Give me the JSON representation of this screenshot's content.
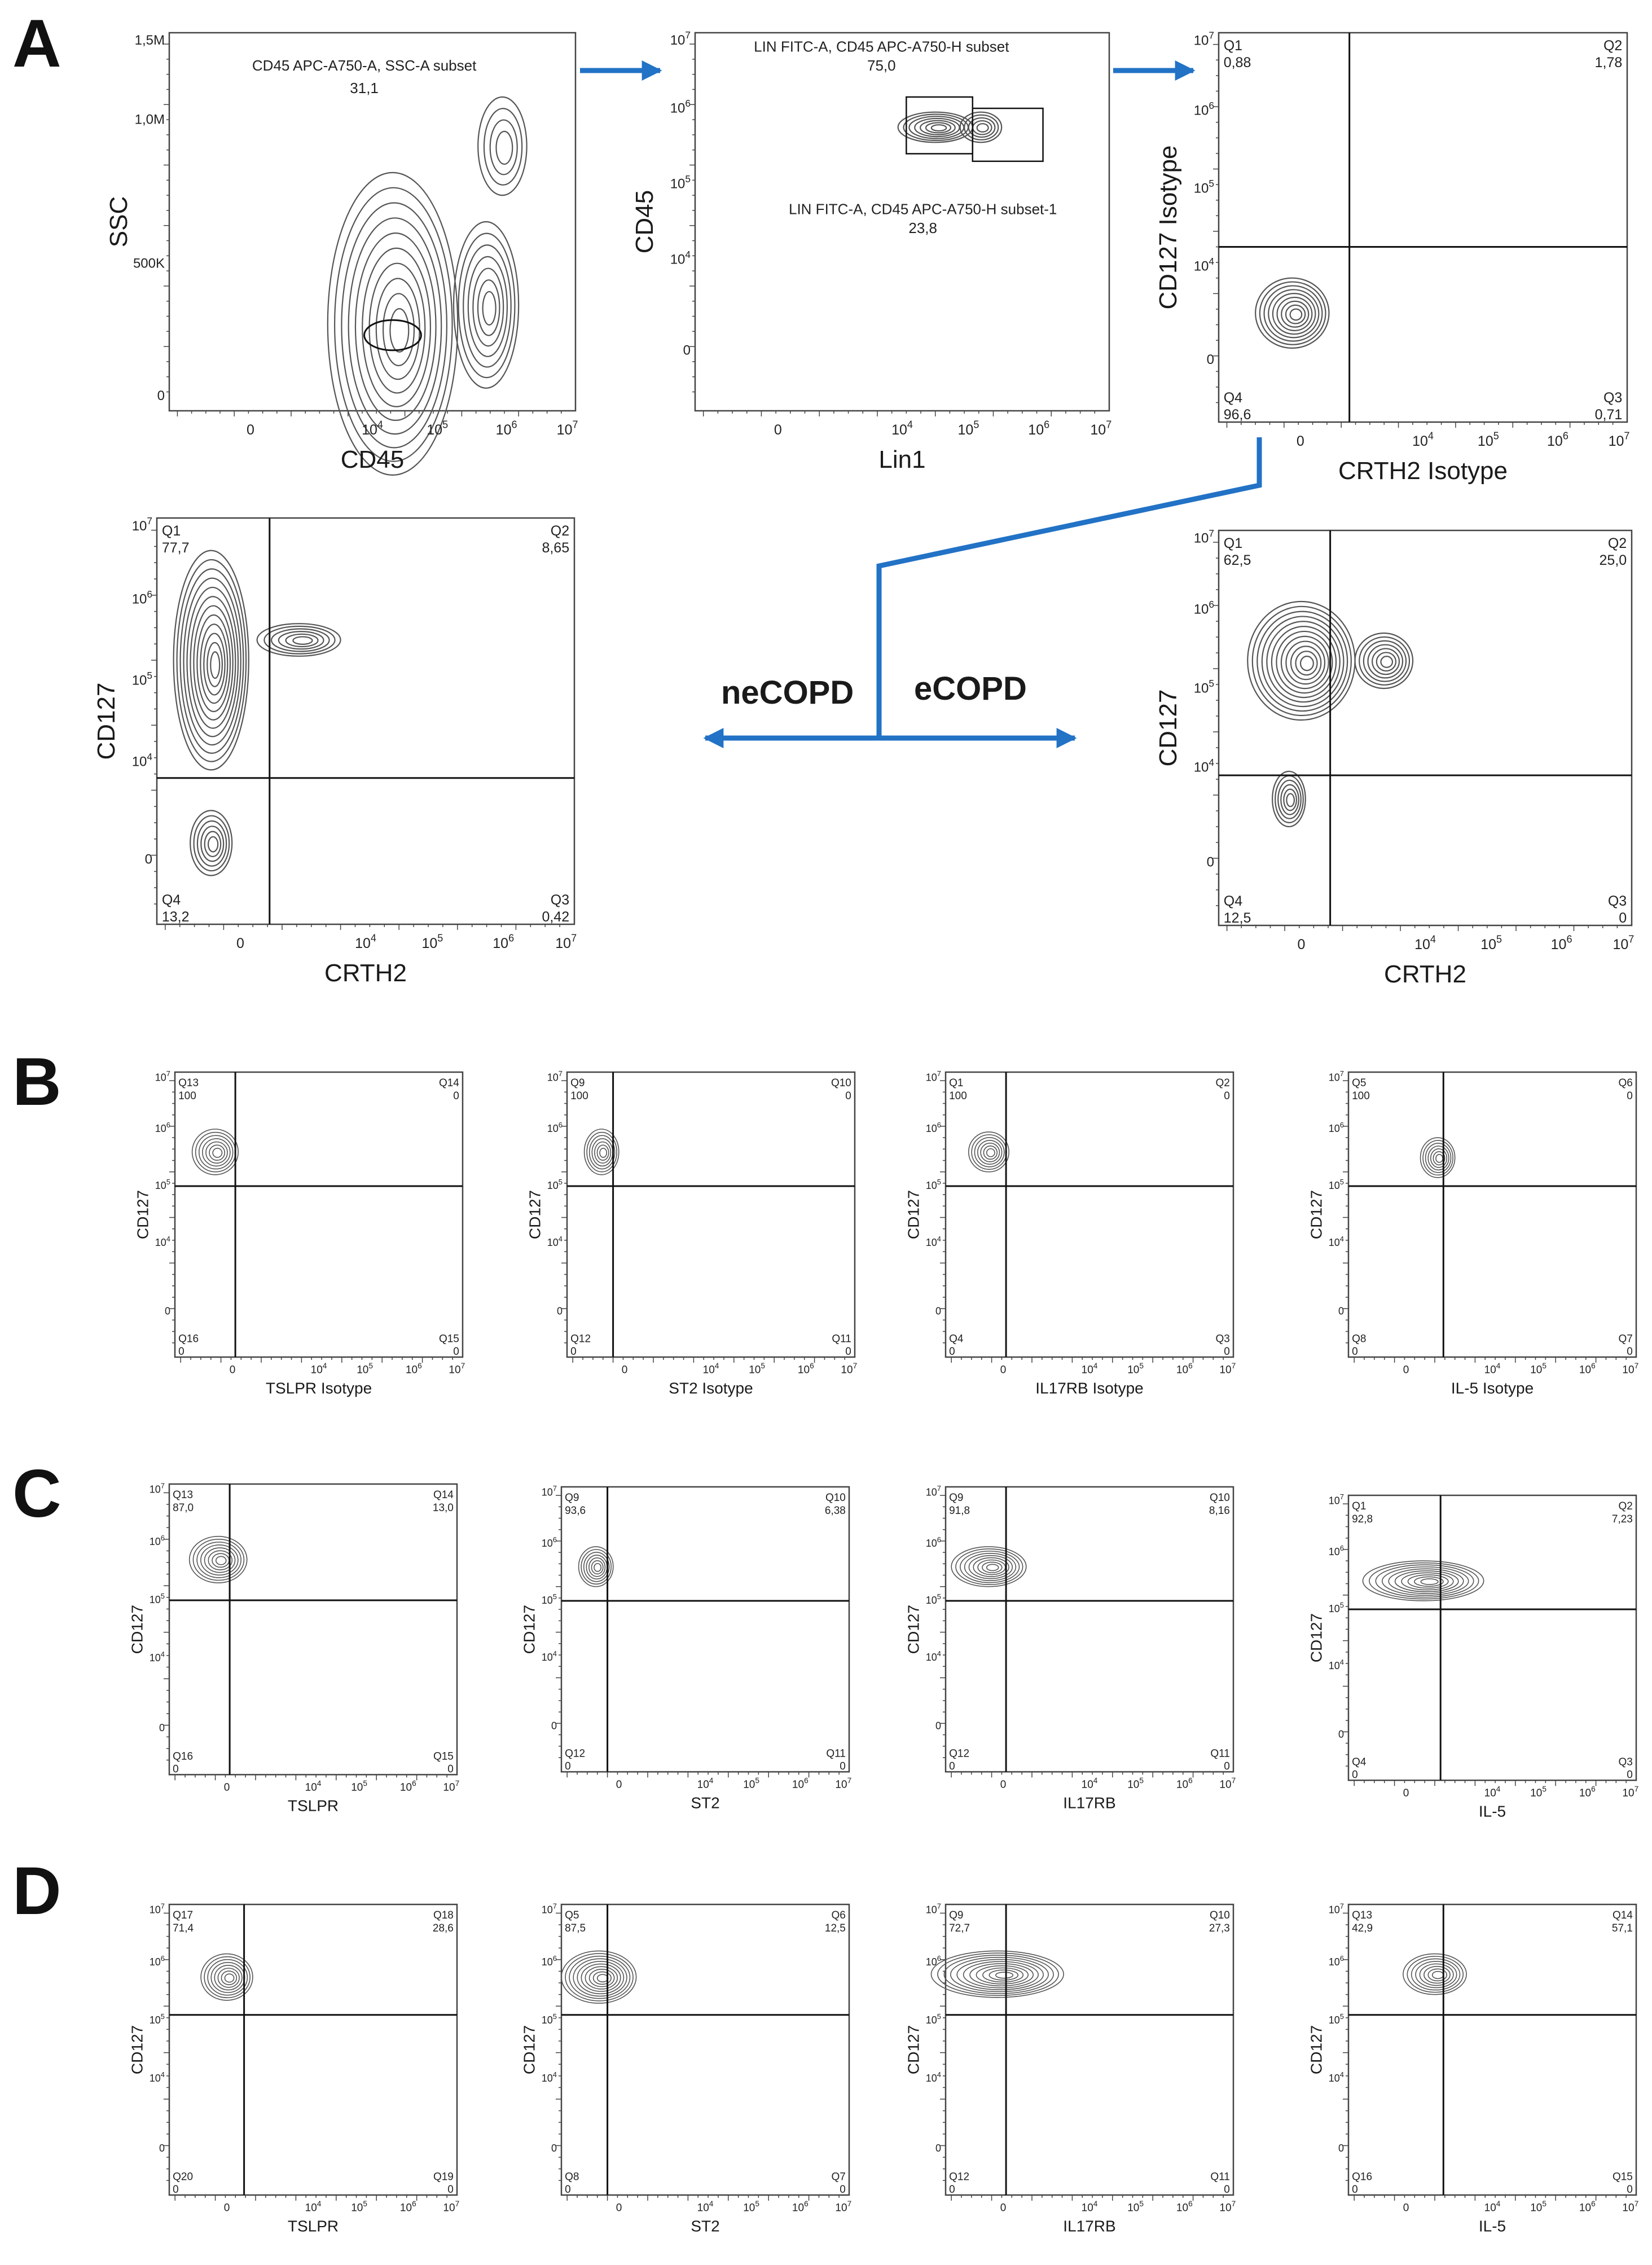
{
  "panel_letters": [
    "A",
    "B",
    "C",
    "D"
  ],
  "flow": {
    "ne": "neCOPD",
    "e": "eCOPD"
  },
  "colors": {
    "arrow": "#2272c6",
    "ink": "#1a1a1a",
    "contour": "#555555"
  },
  "chart_data": [
    {
      "type": "scatter",
      "panel": "A1",
      "xlabel": "CD45",
      "ylabel": "SSC",
      "xticks": [
        "0",
        "10^4",
        "10^5",
        "10^6",
        "10^7"
      ],
      "yticks": [
        "0",
        "500K",
        "1,0M",
        "1,5M"
      ],
      "gates": [
        {
          "label": "CD45 APC-A750-A, SSC-A subset",
          "value": "31,1"
        }
      ]
    },
    {
      "type": "scatter",
      "panel": "A2",
      "xlabel": "Lin1",
      "ylabel": "CD45",
      "xticks": [
        "0",
        "10^4",
        "10^5",
        "10^6",
        "10^7"
      ],
      "yticks": [
        "0",
        "10^4",
        "10^5",
        "10^6",
        "10^7"
      ],
      "gates": [
        {
          "label": "LIN FITC-A, CD45 APC-A750-H subset",
          "value": "75,0"
        },
        {
          "label": "LIN FITC-A, CD45 APC-A750-H subset-1",
          "value": "23,8"
        }
      ]
    },
    {
      "type": "scatter",
      "panel": "A3",
      "xlabel": "CRTH2 Isotype",
      "ylabel": "CD127 Isotype",
      "xticks": [
        "0",
        "10^4",
        "10^5",
        "10^6",
        "10^7"
      ],
      "yticks": [
        "0",
        "10^4",
        "10^5",
        "10^6",
        "10^7"
      ],
      "quadrants": {
        "ul": [
          "Q1",
          "0,88"
        ],
        "ur": [
          "Q2",
          "1,78"
        ],
        "ll": [
          "Q4",
          "96,6"
        ],
        "lr": [
          "Q3",
          "0,71"
        ]
      }
    },
    {
      "type": "scatter",
      "panel": "A-neCOPD",
      "xlabel": "CRTH2",
      "ylabel": "CD127",
      "xticks": [
        "0",
        "10^4",
        "10^5",
        "10^6",
        "10^7"
      ],
      "yticks": [
        "0",
        "10^4",
        "10^5",
        "10^6",
        "10^7"
      ],
      "quadrants": {
        "ul": [
          "Q1",
          "77,7"
        ],
        "ur": [
          "Q2",
          "8,65"
        ],
        "ll": [
          "Q4",
          "13,2"
        ],
        "lr": [
          "Q3",
          "0,42"
        ]
      }
    },
    {
      "type": "scatter",
      "panel": "A-eCOPD",
      "xlabel": "CRTH2",
      "ylabel": "CD127",
      "xticks": [
        "0",
        "10^4",
        "10^5",
        "10^6",
        "10^7"
      ],
      "yticks": [
        "0",
        "10^4",
        "10^5",
        "10^6",
        "10^7"
      ],
      "quadrants": {
        "ul": [
          "Q1",
          "62,5"
        ],
        "ur": [
          "Q2",
          "25,0"
        ],
        "ll": [
          "Q4",
          "12,5"
        ],
        "lr": [
          "Q3",
          "0"
        ]
      }
    },
    {
      "type": "scatter",
      "panel": "B1",
      "xlabel": "TSLPR Isotype",
      "ylabel": "CD127",
      "xticks": [
        "0",
        "10^4",
        "10^5",
        "10^6",
        "10^7"
      ],
      "yticks": [
        "0",
        "10^4",
        "10^5",
        "10^6",
        "10^7"
      ],
      "quadrants": {
        "ul": [
          "Q13",
          "100"
        ],
        "ur": [
          "Q14",
          "0"
        ],
        "ll": [
          "Q16",
          "0"
        ],
        "lr": [
          "Q15",
          "0"
        ]
      }
    },
    {
      "type": "scatter",
      "panel": "B2",
      "xlabel": "ST2 Isotype",
      "ylabel": "CD127",
      "xticks": [
        "0",
        "10^4",
        "10^5",
        "10^6",
        "10^7"
      ],
      "yticks": [
        "0",
        "10^4",
        "10^5",
        "10^6",
        "10^7"
      ],
      "quadrants": {
        "ul": [
          "Q9",
          "100"
        ],
        "ur": [
          "Q10",
          "0"
        ],
        "ll": [
          "Q12",
          "0"
        ],
        "lr": [
          "Q11",
          "0"
        ]
      }
    },
    {
      "type": "scatter",
      "panel": "B3",
      "xlabel": "IL17RB Isotype",
      "ylabel": "CD127",
      "xticks": [
        "0",
        "10^4",
        "10^5",
        "10^6",
        "10^7"
      ],
      "yticks": [
        "0",
        "10^4",
        "10^5",
        "10^6",
        "10^7"
      ],
      "quadrants": {
        "ul": [
          "Q1",
          "100"
        ],
        "ur": [
          "Q2",
          "0"
        ],
        "ll": [
          "Q4",
          "0"
        ],
        "lr": [
          "Q3",
          "0"
        ]
      }
    },
    {
      "type": "scatter",
      "panel": "B4",
      "xlabel": "IL-5 Isotype",
      "ylabel": "CD127",
      "xticks": [
        "0",
        "10^4",
        "10^5",
        "10^6",
        "10^7"
      ],
      "yticks": [
        "0",
        "10^4",
        "10^5",
        "10^6",
        "10^7"
      ],
      "quadrants": {
        "ul": [
          "Q5",
          "100"
        ],
        "ur": [
          "Q6",
          "0"
        ],
        "ll": [
          "Q8",
          "0"
        ],
        "lr": [
          "Q7",
          "0"
        ]
      }
    },
    {
      "type": "scatter",
      "panel": "C1",
      "xlabel": "TSLPR",
      "ylabel": "CD127",
      "xticks": [
        "0",
        "10^4",
        "10^5",
        "10^6",
        "10^7"
      ],
      "yticks": [
        "0",
        "10^4",
        "10^5",
        "10^6",
        "10^7"
      ],
      "quadrants": {
        "ul": [
          "Q13",
          "87,0"
        ],
        "ur": [
          "Q14",
          "13,0"
        ],
        "ll": [
          "Q16",
          "0"
        ],
        "lr": [
          "Q15",
          "0"
        ]
      }
    },
    {
      "type": "scatter",
      "panel": "C2",
      "xlabel": "ST2",
      "ylabel": "CD127",
      "xticks": [
        "0",
        "10^4",
        "10^5",
        "10^6",
        "10^7"
      ],
      "yticks": [
        "0",
        "10^4",
        "10^5",
        "10^6",
        "10^7"
      ],
      "quadrants": {
        "ul": [
          "Q9",
          "93,6"
        ],
        "ur": [
          "Q10",
          "6,38"
        ],
        "ll": [
          "Q12",
          "0"
        ],
        "lr": [
          "Q11",
          "0"
        ]
      }
    },
    {
      "type": "scatter",
      "panel": "C3",
      "xlabel": "IL17RB",
      "ylabel": "CD127",
      "xticks": [
        "0",
        "10^4",
        "10^5",
        "10^6",
        "10^7"
      ],
      "yticks": [
        "0",
        "10^4",
        "10^5",
        "10^6",
        "10^7"
      ],
      "quadrants": {
        "ul": [
          "Q9",
          "91,8"
        ],
        "ur": [
          "Q10",
          "8,16"
        ],
        "ll": [
          "Q12",
          "0"
        ],
        "lr": [
          "Q11",
          "0"
        ]
      }
    },
    {
      "type": "scatter",
      "panel": "C4",
      "xlabel": "IL-5",
      "ylabel": "CD127",
      "xticks": [
        "0",
        "10^4",
        "10^5",
        "10^6",
        "10^7"
      ],
      "yticks": [
        "0",
        "10^4",
        "10^5",
        "10^6",
        "10^7"
      ],
      "quadrants": {
        "ul": [
          "Q1",
          "92,8"
        ],
        "ur": [
          "Q2",
          "7,23"
        ],
        "ll": [
          "Q4",
          "0"
        ],
        "lr": [
          "Q3",
          "0"
        ]
      }
    },
    {
      "type": "scatter",
      "panel": "D1",
      "xlabel": "TSLPR",
      "ylabel": "CD127",
      "xticks": [
        "0",
        "10^4",
        "10^5",
        "10^6",
        "10^7"
      ],
      "yticks": [
        "0",
        "10^4",
        "10^5",
        "10^6",
        "10^7"
      ],
      "quadrants": {
        "ul": [
          "Q17",
          "71,4"
        ],
        "ur": [
          "Q18",
          "28,6"
        ],
        "ll": [
          "Q20",
          "0"
        ],
        "lr": [
          "Q19",
          "0"
        ]
      }
    },
    {
      "type": "scatter",
      "panel": "D2",
      "xlabel": "ST2",
      "ylabel": "CD127",
      "xticks": [
        "0",
        "10^4",
        "10^5",
        "10^6",
        "10^7"
      ],
      "yticks": [
        "0",
        "10^4",
        "10^5",
        "10^6",
        "10^7"
      ],
      "quadrants": {
        "ul": [
          "Q5",
          "87,5"
        ],
        "ur": [
          "Q6",
          "12,5"
        ],
        "ll": [
          "Q8",
          "0"
        ],
        "lr": [
          "Q7",
          "0"
        ]
      }
    },
    {
      "type": "scatter",
      "panel": "D3",
      "xlabel": "IL17RB",
      "ylabel": "CD127",
      "xticks": [
        "0",
        "10^4",
        "10^5",
        "10^6",
        "10^7"
      ],
      "yticks": [
        "0",
        "10^4",
        "10^5",
        "10^6",
        "10^7"
      ],
      "quadrants": {
        "ul": [
          "Q9",
          "72,7"
        ],
        "ur": [
          "Q10",
          "27,3"
        ],
        "ll": [
          "Q12",
          "0"
        ],
        "lr": [
          "Q11",
          "0"
        ]
      }
    },
    {
      "type": "scatter",
      "panel": "D4",
      "xlabel": "IL-5",
      "ylabel": "CD127",
      "xticks": [
        "0",
        "10^4",
        "10^5",
        "10^6",
        "10^7"
      ],
      "yticks": [
        "0",
        "10^4",
        "10^5",
        "10^6",
        "10^7"
      ],
      "quadrants": {
        "ul": [
          "Q13",
          "42,9"
        ],
        "ur": [
          "Q14",
          "57,1"
        ],
        "ll": [
          "Q16",
          "0"
        ],
        "lr": [
          "Q15",
          "0"
        ]
      }
    }
  ]
}
